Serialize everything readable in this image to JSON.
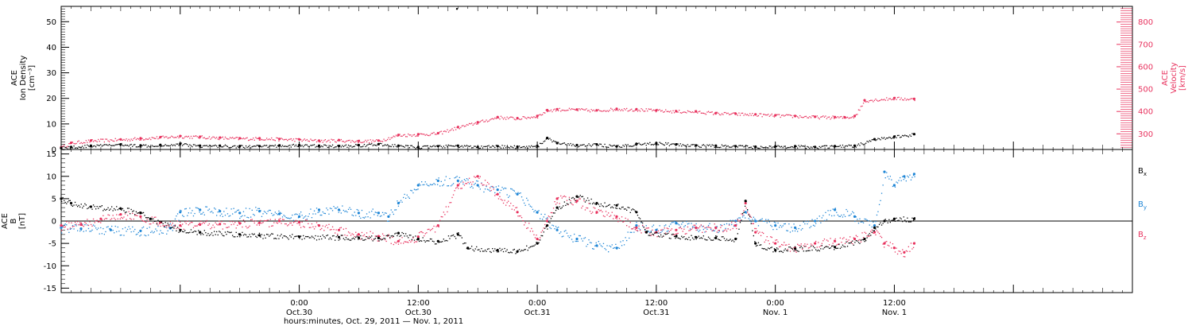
{
  "colors": {
    "black": "#000000",
    "pink": "#e8325e",
    "blue": "#1f86d6"
  },
  "figure": {
    "xlabel": "hours:minutes, Oct. 29, 2011 — Nov. 1, 2011"
  },
  "x_axis": {
    "unit": "hours since Oct. 29, 2011 00:00",
    "range": [
      0,
      108
    ],
    "ticks": [
      {
        "x": 24,
        "line1": "0:00",
        "line2": "Oct.30"
      },
      {
        "x": 36,
        "line1": "12:00",
        "line2": "Oct.30"
      },
      {
        "x": 48,
        "line1": "0:00",
        "line2": "Oct.31"
      },
      {
        "x": 60,
        "line1": "12:00",
        "line2": "Oct.31"
      },
      {
        "x": 72,
        "line1": "0:00",
        "line2": "Nov. 1"
      },
      {
        "x": 84,
        "line1": "12:00",
        "line2": "Nov. 1"
      }
    ]
  },
  "chart_data": [
    {
      "type": "scatter",
      "panel": "top",
      "ylabel_lines": [
        "ACE",
        "Ion Density",
        "[cm⁻³]"
      ],
      "y2label_lines": [
        "ACE",
        "Velocity",
        "[km/s]"
      ],
      "ylim": [
        0,
        56
      ],
      "yticks": [
        0,
        10,
        20,
        30,
        40,
        50
      ],
      "y2lim": [
        230,
        870
      ],
      "y2ticks": [
        300,
        400,
        500,
        600,
        700,
        800
      ],
      "series": [
        {
          "id": "density",
          "axis": "left",
          "color": "#000000",
          "points": [
            [
              0,
              0.5
            ],
            [
              1,
              1
            ],
            [
              3,
              1.5
            ],
            [
              6,
              2
            ],
            [
              8,
              1.6
            ],
            [
              10,
              1.8
            ],
            [
              12,
              2.2
            ],
            [
              14,
              1.5
            ],
            [
              16,
              1.5
            ],
            [
              18,
              1.3
            ],
            [
              20,
              1.3
            ],
            [
              22,
              1.6
            ],
            [
              24,
              1.7
            ],
            [
              26,
              1.5
            ],
            [
              28,
              1.4
            ],
            [
              30,
              1.7
            ],
            [
              32,
              2.1
            ],
            [
              34,
              1.5
            ],
            [
              36,
              1
            ],
            [
              38,
              1.3
            ],
            [
              40,
              1.5
            ],
            [
              42,
              1
            ],
            [
              44,
              1.3
            ],
            [
              46,
              1.1
            ],
            [
              48,
              1.4
            ],
            [
              49,
              4.5
            ],
            [
              50,
              2.5
            ],
            [
              52,
              1.7
            ],
            [
              54,
              2
            ],
            [
              56,
              1.2
            ],
            [
              58,
              2.2
            ],
            [
              60,
              2.5
            ],
            [
              62,
              2
            ],
            [
              64,
              1.6
            ],
            [
              66,
              1.5
            ],
            [
              68,
              1.3
            ],
            [
              70,
              1.1
            ],
            [
              72,
              1.2
            ],
            [
              74,
              1.3
            ],
            [
              76,
              1
            ],
            [
              78,
              1.3
            ],
            [
              80,
              1.5
            ],
            [
              82,
              4
            ],
            [
              84,
              5
            ],
            [
              86,
              6
            ]
          ],
          "extra_points": [
            [
              39.9,
              55
            ]
          ]
        },
        {
          "id": "velocity",
          "axis": "right",
          "color": "#e8325e",
          "points": [
            [
              0,
              240
            ],
            [
              1,
              260
            ],
            [
              3,
              270
            ],
            [
              6,
              275
            ],
            [
              8,
              280
            ],
            [
              10,
              285
            ],
            [
              12,
              290
            ],
            [
              14,
              287
            ],
            [
              16,
              283
            ],
            [
              18,
              280
            ],
            [
              20,
              280
            ],
            [
              22,
              277
            ],
            [
              24,
              275
            ],
            [
              26,
              270
            ],
            [
              28,
              272
            ],
            [
              30,
              268
            ],
            [
              32,
              270
            ],
            [
              34,
              295
            ],
            [
              36,
              298
            ],
            [
              38,
              303
            ],
            [
              40,
              330
            ],
            [
              42,
              352
            ],
            [
              44,
              375
            ],
            [
              46,
              370
            ],
            [
              48,
              380
            ],
            [
              49,
              406
            ],
            [
              50,
              410
            ],
            [
              52,
              409
            ],
            [
              54,
              405
            ],
            [
              56,
              412
            ],
            [
              58,
              410
            ],
            [
              60,
              405
            ],
            [
              62,
              401
            ],
            [
              64,
              400
            ],
            [
              66,
              393
            ],
            [
              68,
              390
            ],
            [
              70,
              387
            ],
            [
              72,
              383
            ],
            [
              74,
              380
            ],
            [
              76,
              376
            ],
            [
              78,
              375
            ],
            [
              79,
              374
            ],
            [
              80,
              380
            ],
            [
              81,
              450
            ],
            [
              84,
              460
            ],
            [
              86,
              456
            ]
          ]
        }
      ]
    },
    {
      "type": "scatter",
      "panel": "bottom",
      "ylabel_lines": [
        "ACE",
        "B",
        "[nT]"
      ],
      "ylim": [
        -16,
        16
      ],
      "yticks": [
        -15,
        -10,
        -5,
        0,
        5,
        10,
        15
      ],
      "legend": [
        {
          "text": "B",
          "sub": "x",
          "color": "#000000"
        },
        {
          "text": "B",
          "sub": "y",
          "color": "#1f86d6"
        },
        {
          "text": "B",
          "sub": "z",
          "color": "#e8325e"
        }
      ],
      "series": [
        {
          "id": "Bx",
          "color": "#000000",
          "points": [
            [
              0,
              5
            ],
            [
              1,
              4
            ],
            [
              3,
              3.2
            ],
            [
              6,
              2.8
            ],
            [
              8,
              1.8
            ],
            [
              9,
              0.5
            ],
            [
              12,
              -2
            ],
            [
              14,
              -2.5
            ],
            [
              18,
              -3
            ],
            [
              20,
              -3.2
            ],
            [
              24,
              -3.5
            ],
            [
              28,
              -3.6
            ],
            [
              30,
              -3.7
            ],
            [
              32,
              -3.8
            ],
            [
              34,
              -2.7
            ],
            [
              36,
              -4
            ],
            [
              38,
              -4.5
            ],
            [
              40,
              -3
            ],
            [
              41,
              -6
            ],
            [
              44,
              -6.5
            ],
            [
              46,
              -6.8
            ],
            [
              48,
              -5
            ],
            [
              49,
              -1
            ],
            [
              50,
              3
            ],
            [
              52,
              5.5
            ],
            [
              54,
              4
            ],
            [
              56,
              3.5
            ],
            [
              58,
              2
            ],
            [
              59,
              -2.5
            ],
            [
              62,
              -3.4
            ],
            [
              64,
              -3.6
            ],
            [
              66,
              -3.8
            ],
            [
              68,
              -4
            ],
            [
              69,
              4.5
            ],
            [
              70,
              -5
            ],
            [
              72,
              -6.5
            ],
            [
              74,
              -6.2
            ],
            [
              78,
              -5.8
            ],
            [
              81,
              -4
            ],
            [
              82,
              -1.5
            ],
            [
              83,
              0
            ],
            [
              84,
              0.5
            ],
            [
              86,
              0.5
            ]
          ]
        },
        {
          "id": "By",
          "color": "#1f86d6",
          "points": [
            [
              0,
              -1.5
            ],
            [
              2,
              -1.7
            ],
            [
              5,
              -2
            ],
            [
              8,
              -2.2
            ],
            [
              11,
              -1.6
            ],
            [
              12,
              2
            ],
            [
              14,
              2.5
            ],
            [
              16,
              2.2
            ],
            [
              18,
              1.8
            ],
            [
              20,
              2.2
            ],
            [
              22,
              1.6
            ],
            [
              24,
              1
            ],
            [
              26,
              2.5
            ],
            [
              28,
              2.5
            ],
            [
              30,
              1.8
            ],
            [
              32,
              1.8
            ],
            [
              33,
              1
            ],
            [
              34,
              4
            ],
            [
              36,
              8
            ],
            [
              38,
              9
            ],
            [
              40,
              9
            ],
            [
              42,
              8
            ],
            [
              44,
              7
            ],
            [
              46,
              6
            ],
            [
              48,
              2
            ],
            [
              50,
              -2
            ],
            [
              52,
              -4
            ],
            [
              54,
              -5.5
            ],
            [
              56,
              -6
            ],
            [
              58,
              -1
            ],
            [
              60,
              -2
            ],
            [
              62,
              -0.5
            ],
            [
              64,
              -1.5
            ],
            [
              66,
              -1.5
            ],
            [
              68,
              0
            ],
            [
              69,
              2
            ],
            [
              70,
              0
            ],
            [
              72,
              -1
            ],
            [
              74,
              -1.5
            ],
            [
              76,
              0
            ],
            [
              78,
              2.5
            ],
            [
              80,
              1
            ],
            [
              82,
              -1
            ],
            [
              83,
              11
            ],
            [
              84,
              8
            ],
            [
              85,
              10
            ],
            [
              86,
              10.5
            ]
          ]
        },
        {
          "id": "Bz",
          "color": "#e8325e",
          "points": [
            [
              0,
              -1
            ],
            [
              2,
              -0.8
            ],
            [
              4,
              0.5
            ],
            [
              6,
              1.5
            ],
            [
              8,
              1
            ],
            [
              10,
              -0.3
            ],
            [
              12,
              -1
            ],
            [
              14,
              -0.8
            ],
            [
              16,
              -0.7
            ],
            [
              18,
              -0.5
            ],
            [
              20,
              -0.4
            ],
            [
              22,
              0
            ],
            [
              24,
              -0.3
            ],
            [
              26,
              -1
            ],
            [
              28,
              -2
            ],
            [
              30,
              -3
            ],
            [
              32,
              -3.4
            ],
            [
              34,
              -4.5
            ],
            [
              36,
              -3.5
            ],
            [
              38,
              -1
            ],
            [
              40,
              8
            ],
            [
              42,
              10
            ],
            [
              44,
              6
            ],
            [
              46,
              2
            ],
            [
              48,
              -4
            ],
            [
              49,
              0
            ],
            [
              50,
              5
            ],
            [
              52,
              4.5
            ],
            [
              54,
              2
            ],
            [
              56,
              1
            ],
            [
              58,
              -1.5
            ],
            [
              60,
              -2.5
            ],
            [
              62,
              -2
            ],
            [
              64,
              -1.5
            ],
            [
              66,
              -1.5
            ],
            [
              68,
              -1
            ],
            [
              69,
              4
            ],
            [
              70,
              -2.5
            ],
            [
              72,
              -5
            ],
            [
              74,
              -6
            ],
            [
              76,
              -5
            ],
            [
              78,
              -4.5
            ],
            [
              80,
              -4
            ],
            [
              82,
              -2.5
            ],
            [
              83,
              -5
            ],
            [
              84,
              -6
            ],
            [
              85,
              -7
            ],
            [
              86,
              -5
            ]
          ]
        }
      ]
    }
  ]
}
